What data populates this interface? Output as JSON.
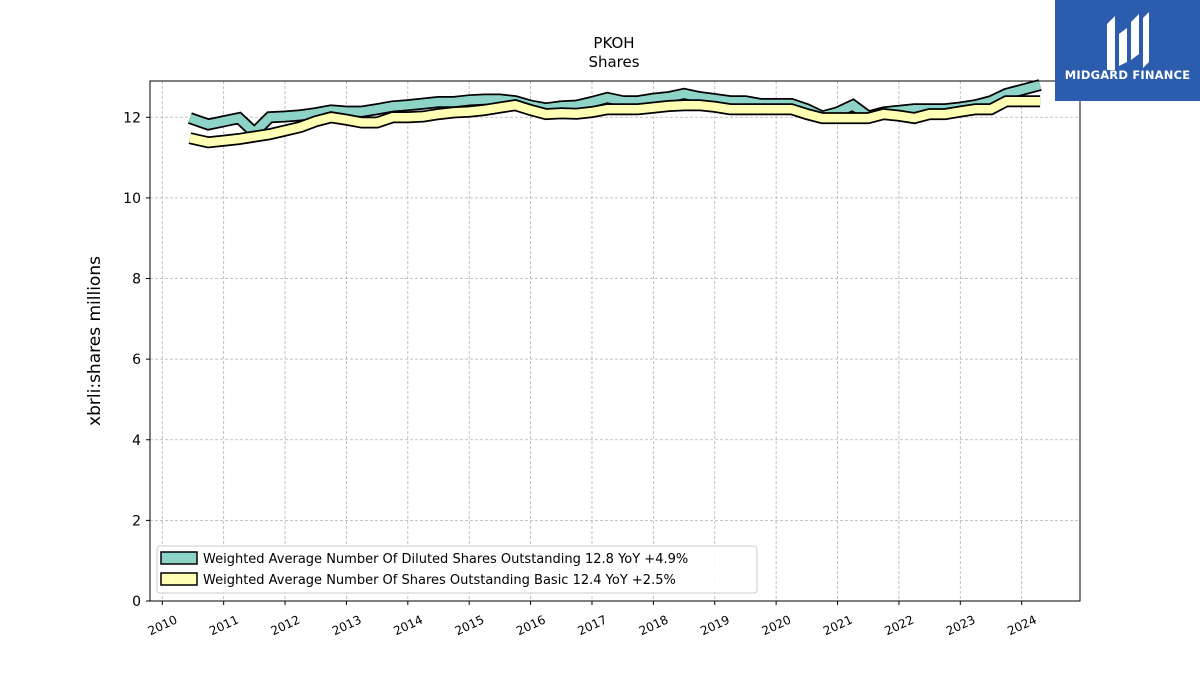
{
  "brand": {
    "name": "MIDGARD FINANCE",
    "logo_icon": "midgard-finance-logo-icon",
    "background_color": "#2b5cad"
  },
  "chart_data": {
    "type": "line",
    "title": "PKOH",
    "subtitle": "Shares",
    "xlabel": "",
    "ylabel": "xbrli:shares millions",
    "xlim": [
      2009.8,
      2024.95
    ],
    "ylim": [
      0,
      12.9
    ],
    "x_ticks": [
      "2010",
      "2011",
      "2012",
      "2013",
      "2014",
      "2015",
      "2016",
      "2017",
      "2018",
      "2019",
      "2020",
      "2021",
      "2022",
      "2023",
      "2024"
    ],
    "y_ticks": [
      "0",
      "2",
      "4",
      "6",
      "8",
      "10",
      "12"
    ],
    "grid": true,
    "legend_position": "lower-left",
    "series": [
      {
        "name": "Weighted Average Number Of Diluted Shares Outstanding  12.8 YoY +4.9%",
        "fill_color": "#8dd3c7",
        "x": [
          2010.45,
          2010.75,
          2011.0,
          2011.25,
          2011.5,
          2011.75,
          2012.0,
          2012.25,
          2012.5,
          2012.75,
          2013.0,
          2013.25,
          2013.5,
          2013.75,
          2014.0,
          2014.25,
          2014.5,
          2014.75,
          2015.0,
          2015.25,
          2015.5,
          2015.75,
          2016.0,
          2016.25,
          2016.5,
          2016.75,
          2017.0,
          2017.25,
          2017.5,
          2017.75,
          2018.0,
          2018.25,
          2018.5,
          2018.75,
          2019.0,
          2019.25,
          2019.5,
          2019.75,
          2020.0,
          2020.25,
          2020.5,
          2020.75,
          2021.0,
          2021.25,
          2021.5,
          2021.75,
          2022.0,
          2022.25,
          2022.5,
          2022.75,
          2023.0,
          2023.25,
          2023.5,
          2023.75,
          2024.0,
          2024.3
        ],
        "values": [
          11.98,
          11.82,
          11.9,
          11.98,
          11.62,
          12.0,
          12.02,
          12.05,
          12.1,
          12.17,
          12.14,
          12.14,
          12.2,
          12.27,
          12.3,
          12.34,
          12.38,
          12.38,
          12.42,
          12.44,
          12.44,
          12.4,
          12.29,
          12.22,
          12.27,
          12.29,
          12.38,
          12.48,
          12.4,
          12.4,
          12.46,
          12.5,
          12.58,
          12.5,
          12.45,
          12.4,
          12.4,
          12.33,
          12.33,
          12.33,
          12.2,
          12.02,
          12.12,
          12.3,
          12.02,
          12.12,
          12.16,
          12.2,
          12.2,
          12.2,
          12.24,
          12.3,
          12.4,
          12.58,
          12.68,
          12.8
        ]
      },
      {
        "name": "Weighted Average Number Of Shares Outstanding Basic  12.4 YoY +2.5%",
        "fill_color": "#ffffb3",
        "x": [
          2010.45,
          2010.75,
          2011.0,
          2011.25,
          2011.5,
          2011.75,
          2012.0,
          2012.25,
          2012.5,
          2012.75,
          2013.0,
          2013.25,
          2013.5,
          2013.75,
          2014.0,
          2014.25,
          2014.5,
          2014.75,
          2015.0,
          2015.25,
          2015.5,
          2015.75,
          2016.0,
          2016.25,
          2016.5,
          2016.75,
          2017.0,
          2017.25,
          2017.5,
          2017.75,
          2018.0,
          2018.25,
          2018.5,
          2018.75,
          2019.0,
          2019.25,
          2019.5,
          2019.75,
          2020.0,
          2020.25,
          2020.5,
          2020.75,
          2021.0,
          2021.25,
          2021.5,
          2021.75,
          2022.0,
          2022.25,
          2022.5,
          2022.75,
          2023.0,
          2023.25,
          2023.5,
          2023.75,
          2024.0,
          2024.3
        ],
        "values": [
          11.48,
          11.38,
          11.42,
          11.46,
          11.52,
          11.58,
          11.67,
          11.76,
          11.9,
          12.0,
          11.94,
          11.87,
          11.87,
          12.0,
          12.0,
          12.02,
          12.08,
          12.12,
          12.14,
          12.18,
          12.24,
          12.3,
          12.18,
          12.08,
          12.1,
          12.09,
          12.13,
          12.2,
          12.2,
          12.2,
          12.24,
          12.28,
          12.3,
          12.3,
          12.26,
          12.2,
          12.2,
          12.2,
          12.2,
          12.2,
          12.08,
          11.98,
          11.98,
          11.98,
          11.98,
          12.08,
          12.04,
          11.98,
          12.08,
          12.08,
          12.14,
          12.2,
          12.2,
          12.4,
          12.4,
          12.4
        ]
      }
    ]
  }
}
